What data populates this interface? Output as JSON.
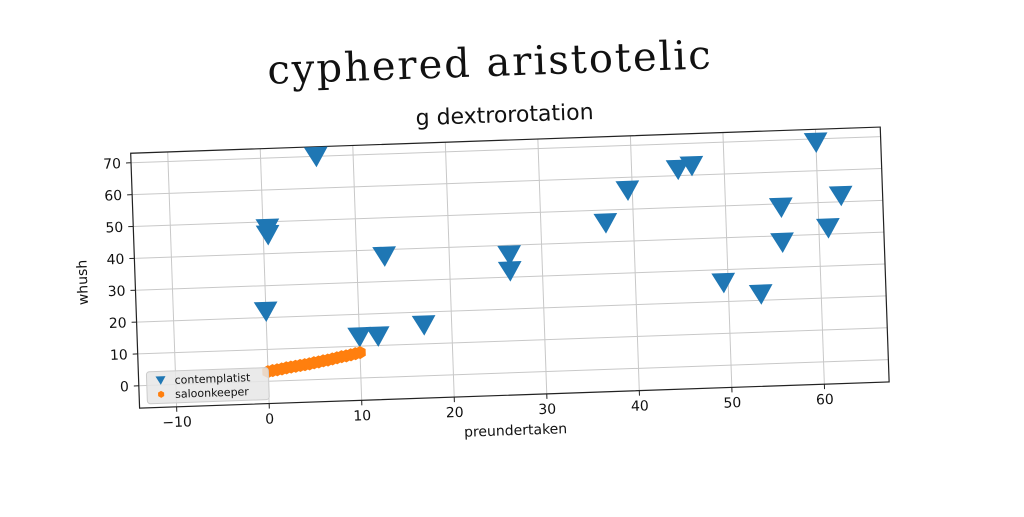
{
  "page_title": "cyphered aristotelic",
  "chart_data": {
    "type": "scatter",
    "title": "g dextrorotation",
    "xlabel": "preundertaken",
    "ylabel": "whush",
    "xlim": [
      -14,
      67
    ],
    "ylim": [
      -7,
      73
    ],
    "xticks": [
      -10,
      0,
      10,
      20,
      30,
      40,
      50,
      60
    ],
    "yticks": [
      0,
      10,
      20,
      30,
      40,
      50,
      60,
      70
    ],
    "grid": true,
    "legend_position": "bottom-left",
    "series": [
      {
        "name": "contemplatist",
        "marker": "triangle-down",
        "color": "#1f77b4",
        "points": [
          [
            0,
            22
          ],
          [
            0.5,
            46
          ],
          [
            0.5,
            48
          ],
          [
            6,
            70
          ],
          [
            10,
            13
          ],
          [
            12,
            13
          ],
          [
            13,
            38
          ],
          [
            17,
            16
          ],
          [
            26.5,
            37
          ],
          [
            26.5,
            32
          ],
          [
            37,
            46
          ],
          [
            39.5,
            56
          ],
          [
            45,
            62
          ],
          [
            46.5,
            63
          ],
          [
            49.5,
            26
          ],
          [
            53.5,
            22
          ],
          [
            56,
            49
          ],
          [
            56,
            38
          ],
          [
            60,
            69
          ],
          [
            61,
            42
          ],
          [
            62.5,
            52
          ]
        ]
      },
      {
        "name": "saloonkeeper",
        "marker": "hexagon",
        "color": "#ff7f0e",
        "points": [
          [
            0,
            3
          ],
          [
            0.5,
            3.3
          ],
          [
            1,
            3.5
          ],
          [
            1.5,
            3.7
          ],
          [
            2,
            4
          ],
          [
            2.5,
            4.2
          ],
          [
            3,
            4.4
          ],
          [
            3.5,
            4.6
          ],
          [
            4,
            4.8
          ],
          [
            4.5,
            5
          ],
          [
            5,
            5.3
          ],
          [
            5.5,
            5.5
          ],
          [
            6,
            5.8
          ],
          [
            6.5,
            6
          ],
          [
            7,
            6.3
          ],
          [
            7.5,
            6.6
          ],
          [
            8,
            6.9
          ],
          [
            8.5,
            7.1
          ],
          [
            9,
            7.4
          ],
          [
            9.5,
            7.7
          ],
          [
            10,
            8
          ]
        ]
      }
    ]
  }
}
